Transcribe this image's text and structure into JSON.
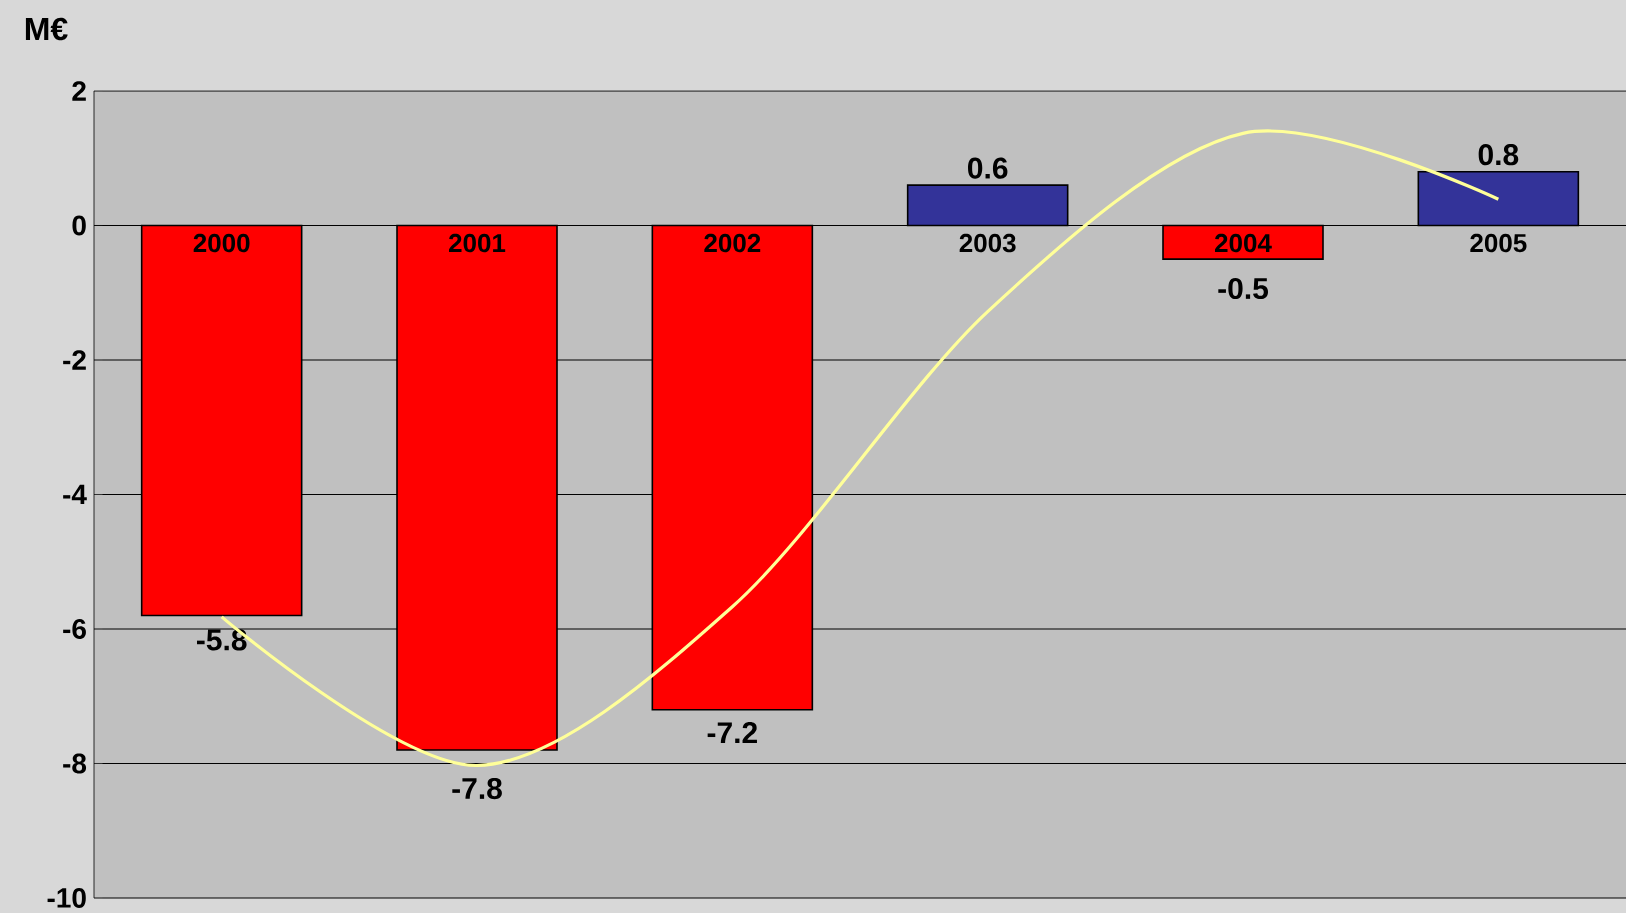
{
  "chart_data": {
    "type": "bar",
    "ylabel": "M€",
    "categories": [
      "2000",
      "2001",
      "2002",
      "2003",
      "2004",
      "2005"
    ],
    "series": [
      {
        "colors": [
          "#ff0000",
          "#ff0000",
          "#ff0000",
          "#333399",
          "#ff0000",
          "#333399"
        ],
        "values": [
          -5.8,
          -7.8,
          -7.2,
          0.6,
          -0.5,
          0.8
        ],
        "value_labels": [
          "-5.8",
          "-7.8",
          "-7.2",
          "0.6",
          "-0.5",
          "0.8"
        ]
      },
      {
        "type": "line",
        "color": "#ffff99",
        "values": [
          -5.82,
          -8.03,
          -5.67,
          -1.28,
          1.37,
          0.39
        ]
      }
    ],
    "ylim": [
      -10,
      2
    ],
    "yticks": [
      -10,
      -8,
      -6,
      -4,
      -2,
      0,
      2
    ],
    "grid": "y",
    "marker": "none"
  }
}
